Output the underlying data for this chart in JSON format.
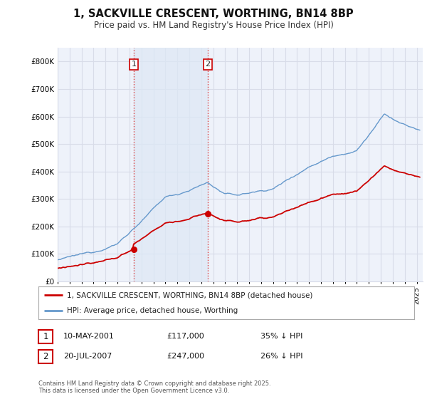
{
  "title": "1, SACKVILLE CRESCENT, WORTHING, BN14 8BP",
  "subtitle": "Price paid vs. HM Land Registry's House Price Index (HPI)",
  "background_color": "#ffffff",
  "plot_bg_color": "#eef2fa",
  "grid_color": "#d8dce8",
  "ylim": [
    0,
    850000
  ],
  "yticks": [
    0,
    100000,
    200000,
    300000,
    400000,
    500000,
    600000,
    700000,
    800000
  ],
  "ytick_labels": [
    "£0",
    "£100K",
    "£200K",
    "£300K",
    "£400K",
    "£500K",
    "£600K",
    "£700K",
    "£800K"
  ],
  "sale1_date": 2001.36,
  "sale1_price": 117000,
  "sale2_date": 2007.55,
  "sale2_price": 247000,
  "legend_line1": "1, SACKVILLE CRESCENT, WORTHING, BN14 8BP (detached house)",
  "legend_line2": "HPI: Average price, detached house, Worthing",
  "table_row1": [
    "1",
    "10-MAY-2001",
    "£117,000",
    "35% ↓ HPI"
  ],
  "table_row2": [
    "2",
    "20-JUL-2007",
    "£247,000",
    "26% ↓ HPI"
  ],
  "footer": "Contains HM Land Registry data © Crown copyright and database right 2025.\nThis data is licensed under the Open Government Licence v3.0.",
  "red_color": "#cc0000",
  "blue_color": "#6699cc",
  "vline_color": "#dd4444",
  "span_color": "#dde8f5",
  "label_box_color": "#cc0000"
}
